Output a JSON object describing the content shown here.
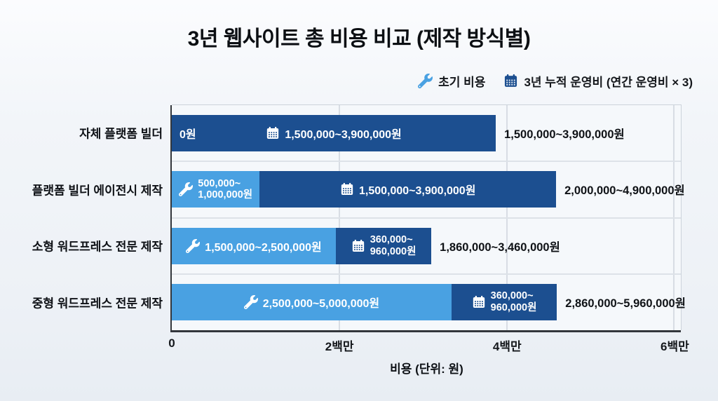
{
  "title": "3년 웹사이트 총 비용 비교 (제작 방식별)",
  "legend": {
    "initial_label": "초기 비용",
    "operating_label": "3년 누적 운영비 (연간 운영비 × 3)",
    "initial_color": "#49a1e2",
    "operating_color": "#1c4f90"
  },
  "chart_data": {
    "type": "bar",
    "orientation": "horizontal",
    "stacked": true,
    "title": "3년 웹사이트 총 비용 비교 (제작 방식별)",
    "xlabel": "비용 (단위: 원)",
    "x_ticks": [
      {
        "label": "0",
        "value_millions": 0
      },
      {
        "label": "2백만",
        "value_millions": 2
      },
      {
        "label": "4백만",
        "value_millions": 4
      },
      {
        "label": "6백만",
        "value_millions": 6
      }
    ],
    "xlim_millions": [
      0,
      6.08
    ],
    "grid": true,
    "legend_position": "top-right",
    "series_names": [
      "초기 비용",
      "3년 누적 운영비 (연간 운영비 × 3)"
    ],
    "rows": [
      {
        "category": "자체 플랫폼 빌더",
        "initial": {
          "won_min": 0,
          "won_max": 0,
          "label_lines": [
            "0원"
          ],
          "drawn_span_millions": [
            0,
            0
          ]
        },
        "operating": {
          "won_min": 1500000,
          "won_max": 3900000,
          "label_lines": [
            "1,500,000~3,900,000원"
          ],
          "drawn_span_millions": [
            0,
            3.87
          ]
        },
        "total_label": "1,500,000~3,900,000원",
        "total_won_min": 1500000,
        "total_won_max": 3900000
      },
      {
        "category": "플랫폼 빌더 에이전시 제작",
        "initial": {
          "won_min": 500000,
          "won_max": 1000000,
          "label_lines": [
            "500,000~",
            "1,000,000원"
          ],
          "drawn_span_millions": [
            0,
            1.05
          ]
        },
        "operating": {
          "won_min": 1500000,
          "won_max": 3900000,
          "label_lines": [
            "1,500,000~3,900,000원"
          ],
          "drawn_span_millions": [
            1.05,
            4.59
          ]
        },
        "total_label": "2,000,000~4,900,000원",
        "total_won_min": 2000000,
        "total_won_max": 4900000
      },
      {
        "category": "소형 워드프레스 전문 제작",
        "initial": {
          "won_min": 1500000,
          "won_max": 2500000,
          "label_lines": [
            "1,500,000~2,500,000원"
          ],
          "drawn_span_millions": [
            0,
            1.96
          ]
        },
        "operating": {
          "won_min": 360000,
          "won_max": 960000,
          "label_lines": [
            "360,000~",
            "960,000원"
          ],
          "drawn_span_millions": [
            1.96,
            3.1
          ]
        },
        "total_label": "1,860,000~3,460,000원",
        "total_won_min": 1860000,
        "total_won_max": 3460000
      },
      {
        "category": "중형 워드프레스 전문 제작",
        "initial": {
          "won_min": 2500000,
          "won_max": 5000000,
          "label_lines": [
            "2,500,000~5,000,000원"
          ],
          "drawn_span_millions": [
            0,
            3.34
          ]
        },
        "operating": {
          "won_min": 360000,
          "won_max": 960000,
          "label_lines": [
            "360,000~",
            "960,000원"
          ],
          "drawn_span_millions": [
            3.34,
            4.6
          ]
        },
        "total_label": "2,860,000~5,960,000원",
        "total_won_min": 2860000,
        "total_won_max": 5960000
      }
    ]
  }
}
